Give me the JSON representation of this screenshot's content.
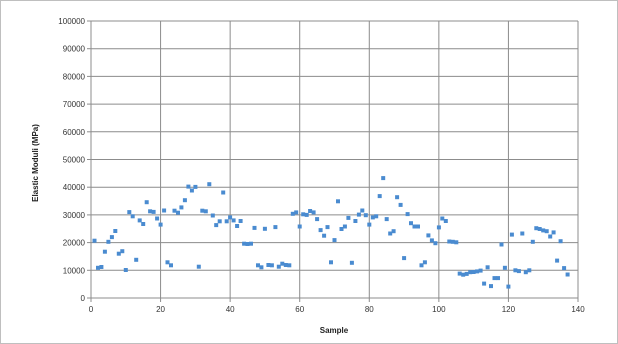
{
  "chart_data": {
    "type": "scatter",
    "title": "",
    "xlabel": "Sample",
    "ylabel": "Elastic Moduli (MPa)",
    "xlim": [
      0,
      140
    ],
    "ylim": [
      0,
      100000
    ],
    "x_ticks": [
      0,
      20,
      40,
      60,
      80,
      100,
      120,
      140
    ],
    "y_ticks": [
      0,
      10000,
      20000,
      30000,
      40000,
      50000,
      60000,
      70000,
      80000,
      90000,
      100000
    ],
    "x_tick_labels": [
      "0",
      "20",
      "40",
      "60",
      "80",
      "100",
      "120",
      "140"
    ],
    "y_tick_labels": [
      "0",
      "10000",
      "20000",
      "30000",
      "40000",
      "50000",
      "60000",
      "70000",
      "80000",
      "90000",
      "100000"
    ],
    "grid": true,
    "legend": "none",
    "marker_color": "#4a8bd0",
    "series": [
      {
        "points": [
          [
            1,
            20700
          ],
          [
            2,
            10900
          ],
          [
            3,
            11200
          ],
          [
            4,
            16700
          ],
          [
            5,
            20300
          ],
          [
            6,
            22000
          ],
          [
            7,
            24200
          ],
          [
            8,
            16000
          ],
          [
            9,
            16900
          ],
          [
            10,
            10100
          ],
          [
            11,
            31000
          ],
          [
            12,
            29500
          ],
          [
            13,
            13800
          ],
          [
            14,
            28000
          ],
          [
            15,
            26700
          ],
          [
            16,
            34600
          ],
          [
            17,
            31300
          ],
          [
            18,
            31100
          ],
          [
            19,
            28700
          ],
          [
            20,
            26500
          ],
          [
            21,
            31600
          ],
          [
            22,
            12900
          ],
          [
            23,
            11800
          ],
          [
            24,
            31500
          ],
          [
            25,
            30800
          ],
          [
            26,
            32700
          ],
          [
            27,
            35300
          ],
          [
            28,
            40200
          ],
          [
            29,
            38800
          ],
          [
            30,
            40100
          ],
          [
            31,
            11300
          ],
          [
            32,
            31500
          ],
          [
            33,
            31300
          ],
          [
            34,
            41100
          ],
          [
            35,
            29800
          ],
          [
            36,
            26300
          ],
          [
            37,
            27700
          ],
          [
            38,
            38100
          ],
          [
            39,
            27700
          ],
          [
            40,
            29100
          ],
          [
            41,
            28000
          ],
          [
            42,
            26000
          ],
          [
            43,
            27800
          ],
          [
            44,
            19600
          ],
          [
            45,
            19500
          ],
          [
            46,
            19600
          ],
          [
            47,
            25300
          ],
          [
            48,
            11800
          ],
          [
            49,
            11100
          ],
          [
            50,
            25000
          ],
          [
            51,
            11900
          ],
          [
            52,
            11800
          ],
          [
            53,
            25600
          ],
          [
            54,
            11300
          ],
          [
            55,
            12400
          ],
          [
            56,
            11900
          ],
          [
            57,
            11800
          ],
          [
            58,
            30400
          ],
          [
            59,
            30900
          ],
          [
            60,
            25800
          ],
          [
            61,
            30200
          ],
          [
            62,
            30000
          ],
          [
            63,
            31400
          ],
          [
            64,
            30900
          ],
          [
            65,
            28500
          ],
          [
            66,
            24500
          ],
          [
            67,
            22500
          ],
          [
            68,
            25600
          ],
          [
            69,
            12900
          ],
          [
            70,
            20900
          ],
          [
            71,
            34900
          ],
          [
            72,
            24900
          ],
          [
            73,
            25800
          ],
          [
            74,
            28900
          ],
          [
            75,
            12700
          ],
          [
            76,
            27800
          ],
          [
            77,
            30100
          ],
          [
            78,
            31600
          ],
          [
            79,
            29900
          ],
          [
            80,
            26500
          ],
          [
            81,
            29100
          ],
          [
            82,
            29500
          ],
          [
            83,
            36800
          ],
          [
            84,
            43300
          ],
          [
            85,
            28500
          ],
          [
            86,
            23300
          ],
          [
            87,
            24100
          ],
          [
            88,
            36400
          ],
          [
            89,
            33600
          ],
          [
            90,
            14400
          ],
          [
            91,
            30300
          ],
          [
            92,
            27000
          ],
          [
            93,
            25800
          ],
          [
            94,
            25800
          ],
          [
            95,
            11800
          ],
          [
            96,
            12900
          ],
          [
            97,
            22600
          ],
          [
            98,
            20800
          ],
          [
            99,
            19800
          ],
          [
            100,
            25500
          ],
          [
            101,
            28700
          ],
          [
            102,
            27800
          ],
          [
            103,
            20400
          ],
          [
            104,
            20300
          ],
          [
            105,
            20100
          ],
          [
            106,
            8800
          ],
          [
            107,
            8400
          ],
          [
            108,
            8700
          ],
          [
            109,
            9300
          ],
          [
            110,
            9400
          ],
          [
            111,
            9600
          ],
          [
            112,
            9900
          ],
          [
            113,
            5200
          ],
          [
            114,
            11100
          ],
          [
            115,
            4300
          ],
          [
            116,
            7200
          ],
          [
            117,
            7200
          ],
          [
            118,
            19300
          ],
          [
            119,
            10900
          ],
          [
            120,
            4100
          ],
          [
            121,
            22900
          ],
          [
            122,
            10000
          ],
          [
            123,
            9700
          ],
          [
            124,
            23300
          ],
          [
            125,
            9300
          ],
          [
            126,
            10000
          ],
          [
            127,
            20300
          ],
          [
            128,
            25200
          ],
          [
            129,
            24900
          ],
          [
            130,
            24400
          ],
          [
            131,
            24100
          ],
          [
            132,
            22200
          ],
          [
            133,
            23700
          ],
          [
            134,
            13500
          ],
          [
            135,
            20500
          ],
          [
            136,
            10800
          ],
          [
            137,
            8500
          ]
        ]
      }
    ]
  }
}
